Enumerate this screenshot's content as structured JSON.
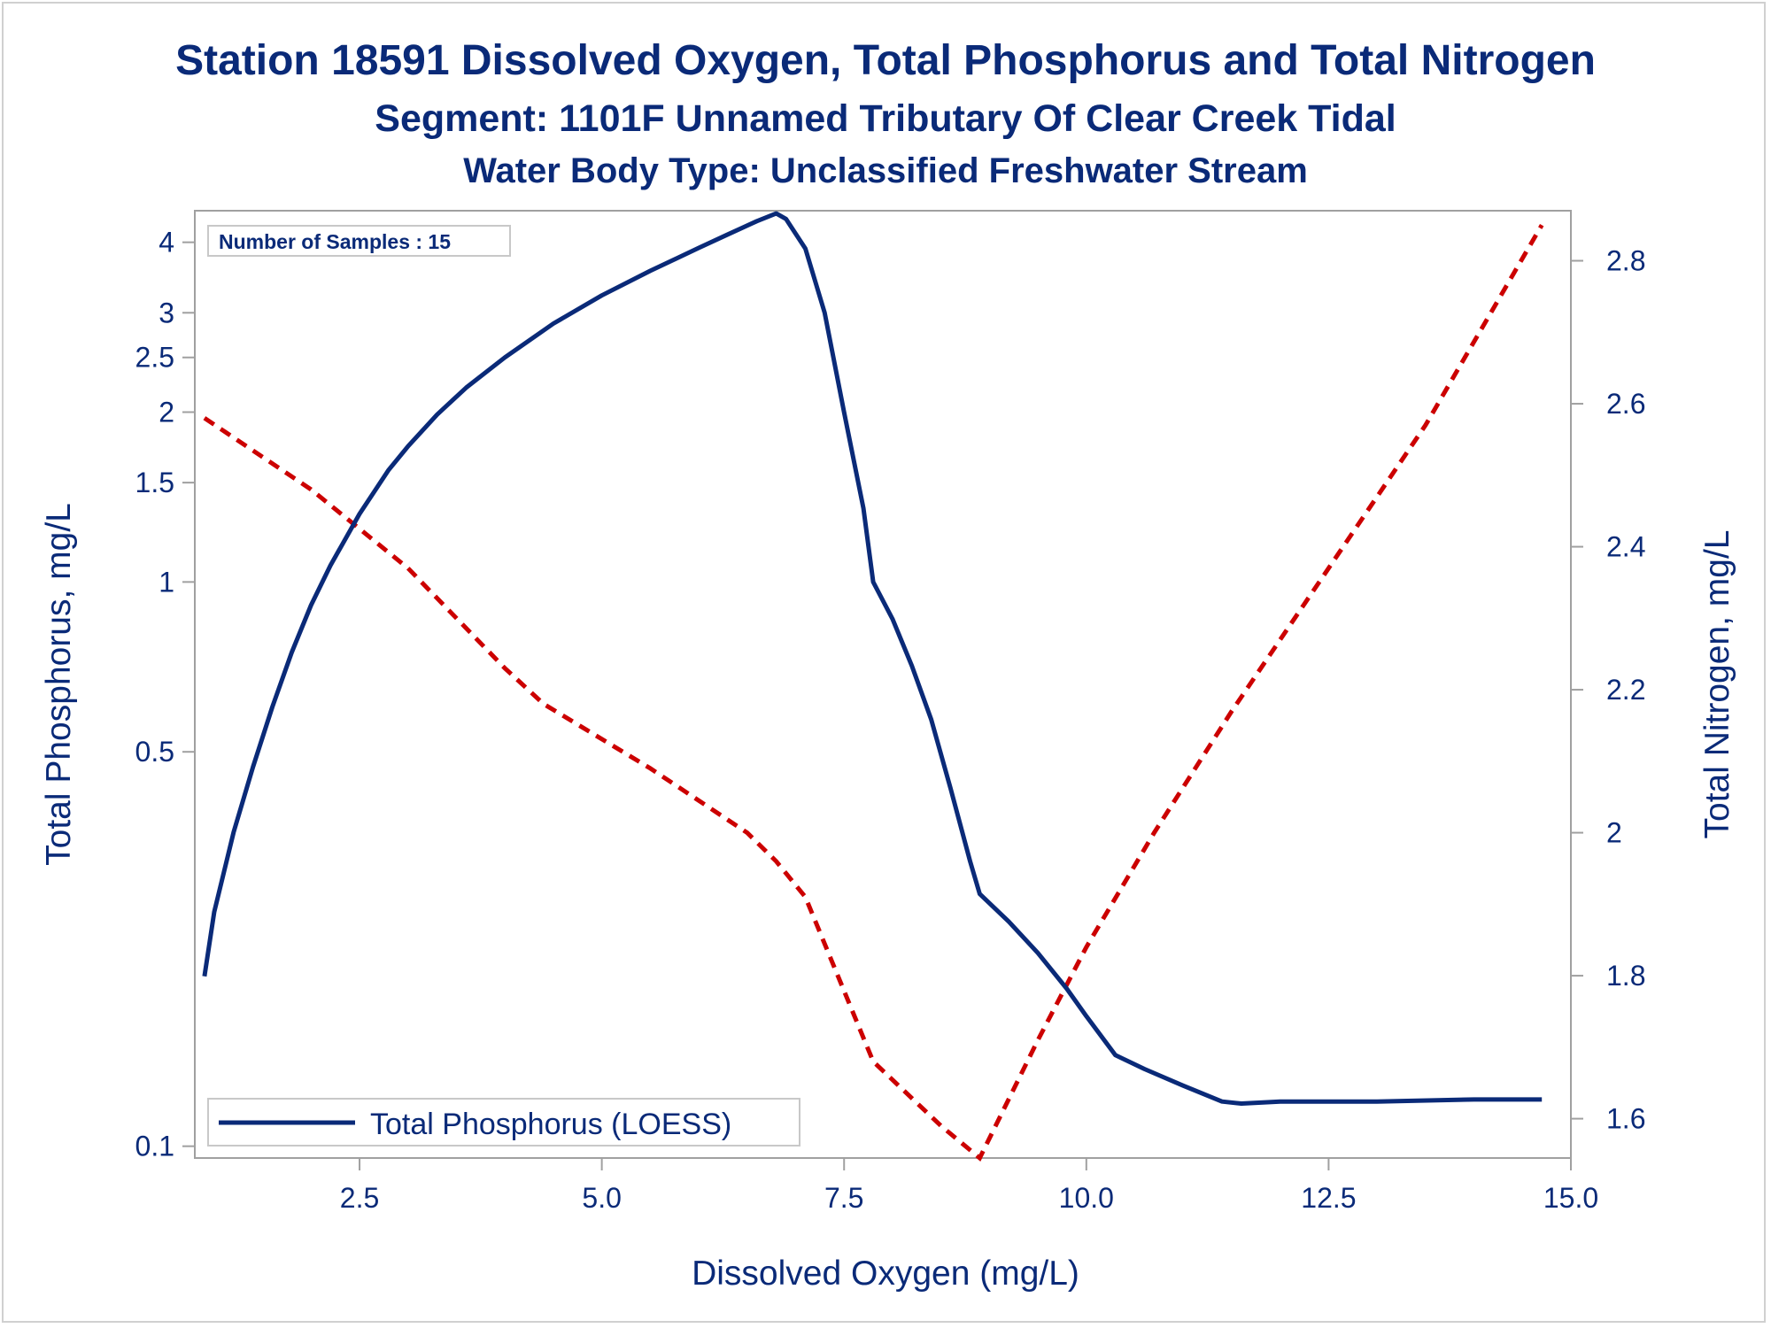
{
  "titles": {
    "line1": "Station 18591  Dissolved Oxygen, Total Phosphorus and Total Nitrogen",
    "line2": "Segment: 1101F  Unnamed Tributary Of Clear Creek Tidal",
    "line3": "Water Body Type: Unclassified Freshwater Stream"
  },
  "inset_text": "Number of Samples : 15",
  "legend": {
    "entry": "Total Phosphorus (LOESS)"
  },
  "colors": {
    "navy": "#0a2a78",
    "red": "#cc0000",
    "frame": "#a0a0a0"
  },
  "chart_data": {
    "type": "line",
    "xlabel": "Dissolved Oxygen (mg/L)",
    "ylabel_left": "Total Phosphorus, mg/L",
    "ylabel_right": "Total Nitrogen, mg/L",
    "xlim": [
      0.8,
      15.0
    ],
    "ylim_left": [
      0.0953,
      4.55
    ],
    "yscale_left": "log",
    "ylim_right": [
      1.545,
      2.87
    ],
    "x_ticks": [
      "2.5",
      "5.0",
      "7.5",
      "10.0",
      "12.5",
      "15.0"
    ],
    "y_left_ticks": [
      "0.1",
      "0.5",
      "1",
      "1.5",
      "2",
      "2.5",
      "3",
      "4"
    ],
    "y_right_ticks": [
      "1.6",
      "1.8",
      "2",
      "2.2",
      "2.4",
      "2.6",
      "2.8"
    ],
    "legend_position": "bottom-left",
    "series": [
      {
        "name": "Total Phosphorus (LOESS)",
        "axis": "left",
        "style": "solid",
        "x": [
          0.9,
          1.0,
          1.2,
          1.4,
          1.6,
          1.8,
          2.0,
          2.2,
          2.5,
          2.8,
          3.0,
          3.3,
          3.6,
          4.0,
          4.5,
          5.0,
          5.5,
          6.0,
          6.3,
          6.6,
          6.8,
          6.9,
          7.1,
          7.3,
          7.5,
          7.7,
          7.8,
          8.0,
          8.2,
          8.4,
          8.6,
          8.8,
          8.9,
          9.2,
          9.5,
          9.8,
          10.0,
          10.3,
          10.6,
          11.0,
          11.4,
          11.6,
          12.0,
          13.0,
          14.0,
          14.7
        ],
        "y": [
          0.2,
          0.26,
          0.36,
          0.47,
          0.6,
          0.75,
          0.91,
          1.07,
          1.32,
          1.58,
          1.74,
          1.98,
          2.21,
          2.5,
          2.87,
          3.22,
          3.56,
          3.91,
          4.13,
          4.36,
          4.5,
          4.4,
          3.9,
          3.0,
          2.0,
          1.35,
          1.0,
          0.86,
          0.71,
          0.57,
          0.43,
          0.32,
          0.28,
          0.25,
          0.22,
          0.19,
          0.17,
          0.145,
          0.137,
          0.128,
          0.12,
          0.119,
          0.12,
          0.12,
          0.121,
          0.121
        ]
      },
      {
        "axis": "right",
        "style": "dashed",
        "x": [
          0.9,
          2.0,
          3.0,
          4.0,
          4.4,
          5.5,
          6.5,
          6.8,
          7.1,
          7.8,
          8.5,
          8.9,
          9.5,
          10.0,
          10.7,
          11.5,
          12.5,
          13.5,
          14.7
        ],
        "y": [
          2.58,
          2.48,
          2.37,
          2.23,
          2.18,
          2.09,
          2.0,
          1.96,
          1.91,
          1.68,
          1.59,
          1.545,
          1.71,
          1.84,
          2.0,
          2.17,
          2.37,
          2.57,
          2.85
        ]
      }
    ]
  }
}
